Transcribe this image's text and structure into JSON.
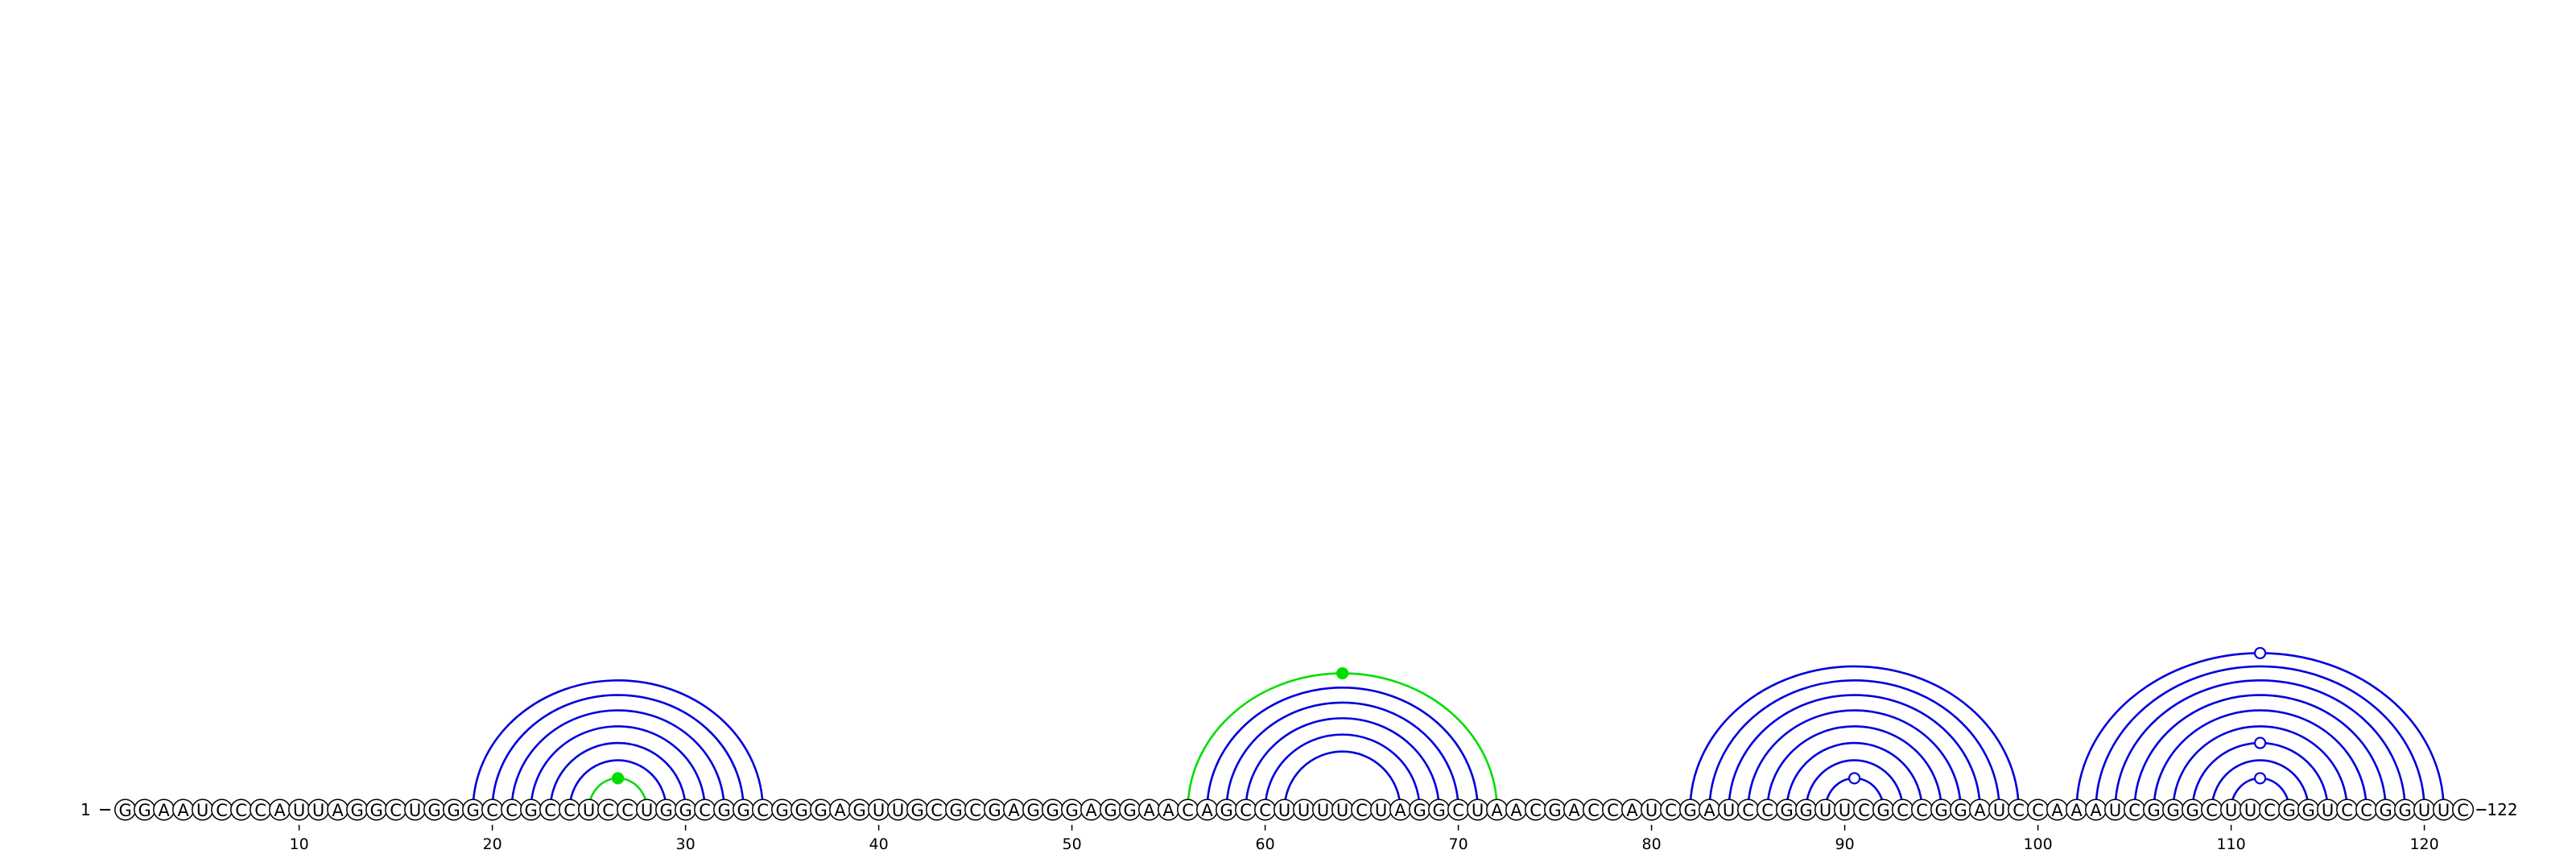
{
  "sequence": "GGAAUCCCAUUAGGCUGGGCCGCCUCCUGGCGGCGGGAGUUGCGCGAGGGAGGAACAGCCUUUUCUAGGCUAACGACCAUCGAUCCGGUUCGCCGGAUCCAAAUCGGGCUUCGGUCCGGUUC",
  "start_label": "1",
  "end_label": "122",
  "position_ticks": [
    "10",
    "20",
    "30",
    "40",
    "50",
    "60",
    "70",
    "80",
    "90",
    "100",
    "110",
    "120"
  ],
  "colors": {
    "pair_arc": "#0000dd",
    "highlight_arc": "#00dd00",
    "nucleotide_stroke": "#000000",
    "marker_open_fill": "#ffffff"
  },
  "base_pairs": [
    {
      "i": 19,
      "j": 34,
      "color": "blue"
    },
    {
      "i": 20,
      "j": 33,
      "color": "blue"
    },
    {
      "i": 21,
      "j": 32,
      "color": "blue"
    },
    {
      "i": 22,
      "j": 31,
      "color": "blue"
    },
    {
      "i": 23,
      "j": 30,
      "color": "blue"
    },
    {
      "i": 24,
      "j": 29,
      "color": "blue"
    },
    {
      "i": 25,
      "j": 28,
      "color": "green",
      "marker": "filled"
    },
    {
      "i": 56,
      "j": 72,
      "color": "green",
      "marker": "filled"
    },
    {
      "i": 57,
      "j": 71,
      "color": "blue"
    },
    {
      "i": 58,
      "j": 70,
      "color": "blue"
    },
    {
      "i": 59,
      "j": 69,
      "color": "blue"
    },
    {
      "i": 60,
      "j": 68,
      "color": "blue"
    },
    {
      "i": 61,
      "j": 67,
      "color": "blue"
    },
    {
      "i": 82,
      "j": 99,
      "color": "blue"
    },
    {
      "i": 83,
      "j": 98,
      "color": "blue"
    },
    {
      "i": 84,
      "j": 97,
      "color": "blue"
    },
    {
      "i": 85,
      "j": 96,
      "color": "blue"
    },
    {
      "i": 86,
      "j": 95,
      "color": "blue"
    },
    {
      "i": 87,
      "j": 94,
      "color": "blue"
    },
    {
      "i": 88,
      "j": 93,
      "color": "blue"
    },
    {
      "i": 89,
      "j": 92,
      "color": "blue",
      "marker": "open"
    },
    {
      "i": 102,
      "j": 121,
      "color": "blue",
      "marker": "open"
    },
    {
      "i": 103,
      "j": 120,
      "color": "blue"
    },
    {
      "i": 104,
      "j": 119,
      "color": "blue"
    },
    {
      "i": 105,
      "j": 118,
      "color": "blue"
    },
    {
      "i": 106,
      "j": 117,
      "color": "blue"
    },
    {
      "i": 107,
      "j": 116,
      "color": "blue"
    },
    {
      "i": 108,
      "j": 115,
      "color": "blue",
      "marker": "open"
    },
    {
      "i": 109,
      "j": 114,
      "color": "blue"
    },
    {
      "i": 110,
      "j": 113,
      "color": "blue",
      "marker": "open"
    }
  ]
}
